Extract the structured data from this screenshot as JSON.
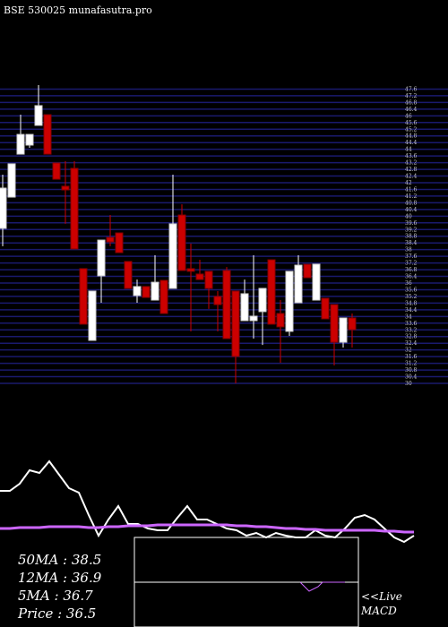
{
  "chart_data": {
    "type": "candlestick",
    "title": "BSE 530025 munafasutra.pro",
    "ylim": [
      30,
      48
    ],
    "yticks": [
      30,
      30.4,
      30.8,
      31.2,
      31.6,
      32,
      32.4,
      32.8,
      33.2,
      33.6,
      34,
      34.4,
      34.8,
      35.2,
      35.6,
      36,
      36.4,
      36.8,
      37.2,
      37.6,
      38,
      38.4,
      38.8,
      39.2,
      39.6,
      40,
      40.4,
      40.8,
      41.2,
      41.6,
      42,
      42.4,
      42.8,
      43.2,
      43.6,
      44,
      44.4,
      44.8,
      45.2,
      45.6,
      46,
      46.4,
      46.8,
      47.2,
      47.6
    ],
    "up_color": "#ffffff",
    "down_color": "#cc0000",
    "grid_color": "#1a1a6e",
    "open": [
      39.27,
      41.14,
      43.71,
      44.25,
      45.43,
      46.07,
      43.18,
      41.79,
      42.86,
      36.86,
      32.57,
      36.43,
      38.73,
      39.0,
      37.29,
      35.25,
      35.79,
      34.98,
      36.16,
      35.68,
      40.07,
      36.86,
      36.54,
      36.7,
      35.2,
      36.75,
      35.52,
      33.75,
      33.75,
      34.29,
      37.39,
      34.18,
      33.11,
      34.82,
      37.12,
      34.98,
      35.09,
      34.71,
      32.46,
      33.91
    ],
    "high": [
      42.48,
      43.13,
      46.07,
      44.89,
      47.84,
      46.07,
      43.18,
      43.29,
      43.29,
      36.86,
      35.52,
      38.57,
      40.07,
      39.0,
      37.29,
      36.21,
      35.79,
      37.66,
      36.16,
      42.48,
      40.71,
      38.36,
      37.39,
      36.7,
      35.52,
      36.96,
      35.52,
      36.21,
      37.66,
      35.68,
      37.39,
      34.98,
      36.7,
      37.66,
      37.12,
      37.13,
      35.09,
      34.71,
      33.91,
      34.18
    ],
    "low": [
      38.2,
      41.14,
      43.71,
      44.09,
      45.43,
      43.71,
      42.21,
      39.54,
      38.04,
      33.54,
      32.57,
      34.82,
      38.2,
      37.82,
      35.68,
      34.82,
      35.14,
      34.98,
      34.18,
      35.68,
      36.75,
      33.11,
      36.21,
      34.45,
      33.11,
      32.68,
      30.0,
      33.75,
      32.68,
      32.3,
      33.54,
      31.23,
      32.84,
      34.82,
      36.32,
      34.98,
      33.86,
      31.07,
      32.14,
      32.14
    ],
    "close": [
      41.68,
      43.13,
      44.89,
      44.89,
      46.61,
      43.71,
      42.21,
      41.57,
      38.04,
      33.54,
      35.52,
      38.57,
      38.46,
      37.82,
      35.68,
      35.79,
      35.14,
      36.05,
      34.18,
      39.54,
      36.75,
      36.7,
      36.21,
      35.68,
      34.71,
      32.68,
      31.61,
      35.36,
      34.02,
      35.68,
      33.54,
      33.38,
      36.7,
      37.07,
      36.32,
      37.13,
      33.86,
      32.46,
      33.91,
      33.21
    ],
    "indicator": {
      "ylim": [
        0,
        100
      ],
      "series": [
        {
          "name": "price",
          "color": "#ffffff",
          "values": [
            52,
            52,
            60,
            75,
            72,
            85,
            70,
            55,
            50,
            25,
            2,
            20,
            35,
            15,
            15,
            10,
            8,
            8,
            22,
            35,
            20,
            20,
            15,
            10,
            8,
            2,
            5,
            0,
            5,
            2,
            0,
            0,
            8,
            2,
            0,
            10,
            22,
            25,
            20,
            10,
            0,
            -5,
            2
          ]
        },
        {
          "name": "ma",
          "color": "#cc66ff",
          "values": [
            10,
            10,
            11,
            11,
            11,
            12,
            12,
            12,
            12,
            11,
            11,
            12,
            12,
            13,
            13,
            13,
            14,
            14,
            14,
            14,
            14,
            14,
            14,
            14,
            13,
            13,
            12,
            12,
            11,
            10,
            10,
            9,
            9,
            8,
            8,
            8,
            8,
            8,
            8,
            7,
            7,
            6,
            6
          ]
        }
      ]
    },
    "ma_labels": [
      "50MA : 38.5",
      "12MA : 36.9",
      "5MA : 36.7",
      "Price   : 36.5"
    ],
    "macd_label": [
      "<<Live",
      "MACD"
    ]
  }
}
